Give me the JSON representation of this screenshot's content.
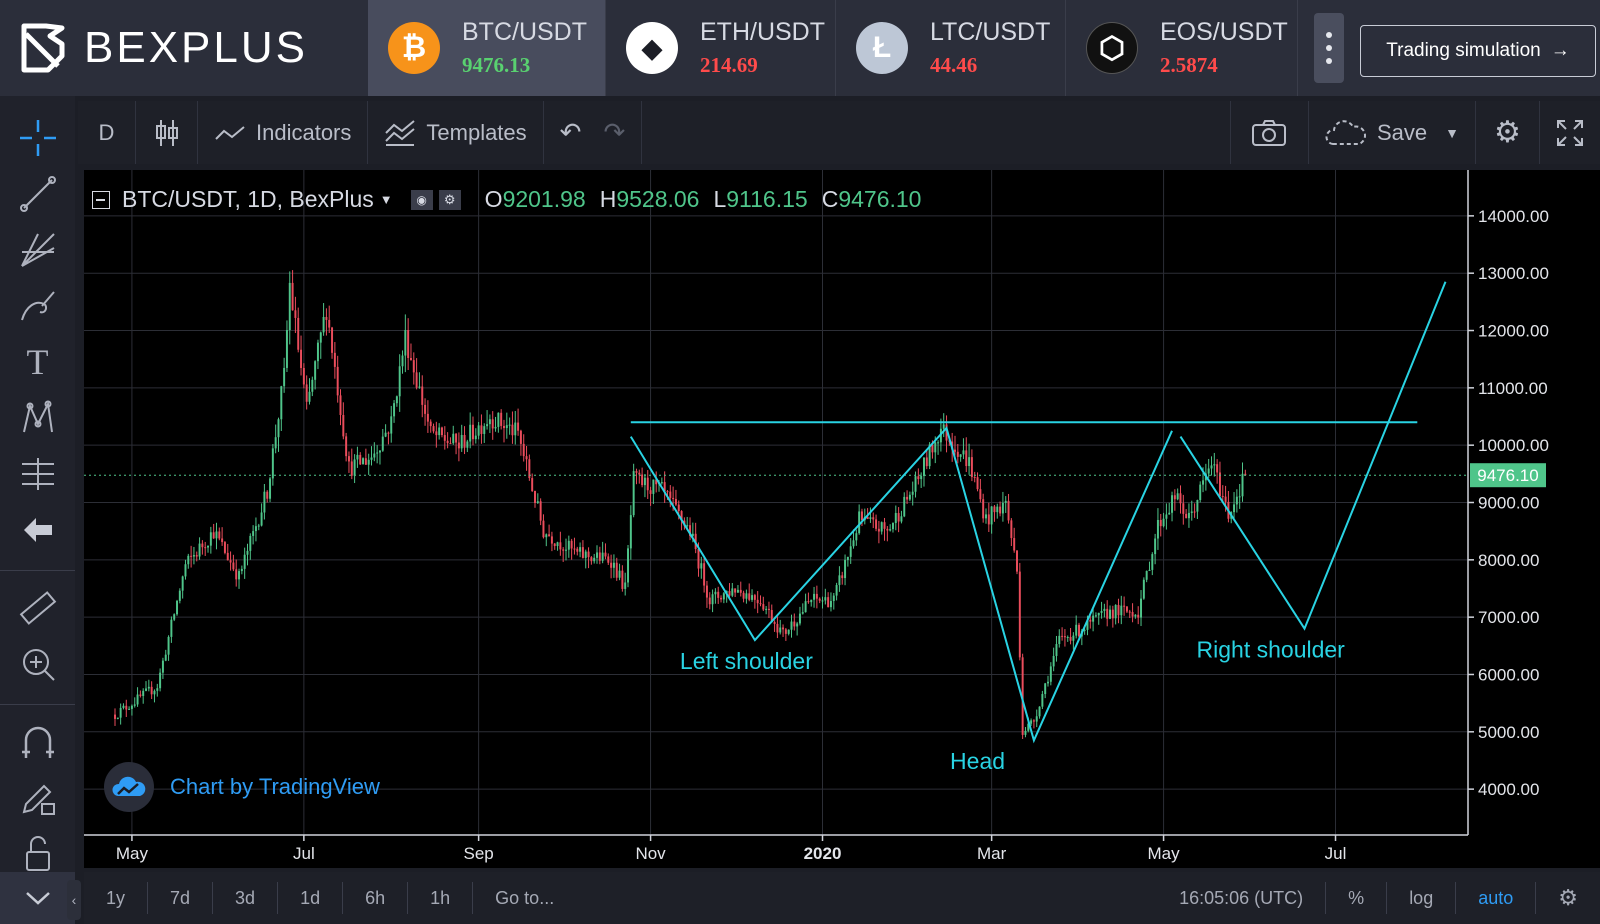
{
  "brand": {
    "name": "BEXPLUS"
  },
  "tickers": [
    {
      "symbol": "BTC/USDT",
      "price": "9476.13",
      "price_color": "#59d170",
      "coin": "btc-icon",
      "coin_bg": "#f7931a",
      "coin_glyph": "₿",
      "active": true
    },
    {
      "symbol": "ETH/USDT",
      "price": "214.69",
      "price_color": "#ff4b4b",
      "coin": "eth-icon",
      "coin_bg": "#ffffff",
      "coin_glyph": "◆",
      "active": false
    },
    {
      "symbol": "LTC/USDT",
      "price": "44.46",
      "price_color": "#ff4b4b",
      "coin": "ltc-icon",
      "coin_bg": "#bdc7d6",
      "coin_glyph": "Ł",
      "active": false
    },
    {
      "symbol": "EOS/USDT",
      "price": "2.5874",
      "price_color": "#ff4b4b",
      "coin": "eos-icon",
      "coin_bg": "#111111",
      "coin_glyph": "⬡",
      "active": false
    }
  ],
  "trading_sim": {
    "label": "Trading simulation"
  },
  "toolbar": {
    "interval": "D",
    "indicators": "Indicators",
    "templates": "Templates",
    "save": "Save"
  },
  "legend": {
    "title": "BTC/USDT, 1D, BexPlus",
    "o_key": "O",
    "o_val": "9201.98",
    "h_key": "H",
    "h_val": "9528.06",
    "l_key": "L",
    "l_val": "9116.15",
    "c_key": "C",
    "c_val": "9476.10"
  },
  "chart_data": {
    "type": "candlestick",
    "ylim": [
      3200,
      14800
    ],
    "y_ticks": [
      "14000.00",
      "13000.00",
      "12000.00",
      "11000.00",
      "10000.00",
      "9000.00",
      "8000.00",
      "7000.00",
      "6000.00",
      "5000.00",
      "4000.00"
    ],
    "x_ticks": [
      "May",
      "Jul",
      "Sep",
      "Nov",
      "2020",
      "Mar",
      "May",
      "Jul"
    ],
    "last_price_label": "9476.10",
    "last_price": 9476.1,
    "price_path": [
      [
        "2019-04-25",
        5300
      ],
      [
        "2019-05-10",
        5800
      ],
      [
        "2019-05-20",
        7900
      ],
      [
        "2019-05-30",
        8500
      ],
      [
        "2019-06-08",
        7700
      ],
      [
        "2019-06-18",
        9200
      ],
      [
        "2019-06-24",
        11200
      ],
      [
        "2019-06-26",
        12800
      ],
      [
        "2019-07-02",
        10600
      ],
      [
        "2019-07-09",
        12400
      ],
      [
        "2019-07-17",
        9600
      ],
      [
        "2019-07-25",
        9800
      ],
      [
        "2019-08-01",
        10400
      ],
      [
        "2019-08-06",
        11900
      ],
      [
        "2019-08-15",
        10200
      ],
      [
        "2019-08-25",
        10000
      ],
      [
        "2019-09-05",
        10500
      ],
      [
        "2019-09-15",
        10200
      ],
      [
        "2019-09-24",
        8500
      ],
      [
        "2019-10-06",
        8100
      ],
      [
        "2019-10-18",
        8000
      ],
      [
        "2019-10-23",
        7500
      ],
      [
        "2019-10-26",
        9400
      ],
      [
        "2019-11-05",
        9200
      ],
      [
        "2019-11-15",
        8500
      ],
      [
        "2019-11-22",
        7300
      ],
      [
        "2019-12-01",
        7500
      ],
      [
        "2019-12-10",
        7300
      ],
      [
        "2019-12-18",
        6700
      ],
      [
        "2019-12-28",
        7300
      ],
      [
        "2020-01-05",
        7300
      ],
      [
        "2020-01-14",
        8700
      ],
      [
        "2020-01-24",
        8500
      ],
      [
        "2020-02-03",
        9300
      ],
      [
        "2020-02-12",
        10300
      ],
      [
        "2020-02-22",
        9700
      ],
      [
        "2020-02-28",
        8700
      ],
      [
        "2020-03-06",
        9000
      ],
      [
        "2020-03-10",
        7800
      ],
      [
        "2020-03-12",
        5000
      ],
      [
        "2020-03-16",
        5200
      ],
      [
        "2020-03-25",
        6600
      ],
      [
        "2020-04-02",
        6800
      ],
      [
        "2020-04-12",
        7100
      ],
      [
        "2020-04-22",
        7100
      ],
      [
        "2020-04-29",
        8600
      ],
      [
        "2020-05-05",
        9100
      ],
      [
        "2020-05-10",
        8700
      ],
      [
        "2020-05-18",
        9700
      ],
      [
        "2020-05-24",
        8800
      ],
      [
        "2020-05-30",
        9476
      ]
    ],
    "drawings": {
      "neckline": [
        [
          "2019-10-25",
          10400
        ],
        [
          "2020-07-30",
          10400
        ]
      ],
      "pattern": [
        [
          "2019-10-25",
          10150
        ],
        [
          "2019-12-08",
          6600
        ],
        [
          "2020-02-14",
          10300
        ],
        [
          "2020-03-16",
          4850
        ],
        [
          "2020-05-04",
          10250
        ]
      ],
      "projection": [
        [
          "2020-05-07",
          10150
        ],
        [
          "2020-06-20",
          6800
        ],
        [
          "2020-08-09",
          12850
        ]
      ],
      "labels": [
        {
          "text": "Left shoulder",
          "date": "2019-12-05",
          "price": 6100
        },
        {
          "text": "Head",
          "date": "2020-02-25",
          "price": 4350
        },
        {
          "text": "Right shoulder",
          "date": "2020-06-08",
          "price": 6300
        }
      ]
    }
  },
  "tradingview": {
    "label": "Chart by TradingView"
  },
  "bottombar": {
    "ranges": [
      "1y",
      "7d",
      "3d",
      "1d",
      "6h",
      "1h"
    ],
    "goto": "Go to...",
    "time": "16:05:06 (UTC)",
    "percent": "%",
    "log": "log",
    "auto": "auto"
  },
  "colors": {
    "up": "#4fc58a",
    "down": "#eb4d5c",
    "drawing": "#29d3e3",
    "price_tag": "#4fc58a"
  }
}
